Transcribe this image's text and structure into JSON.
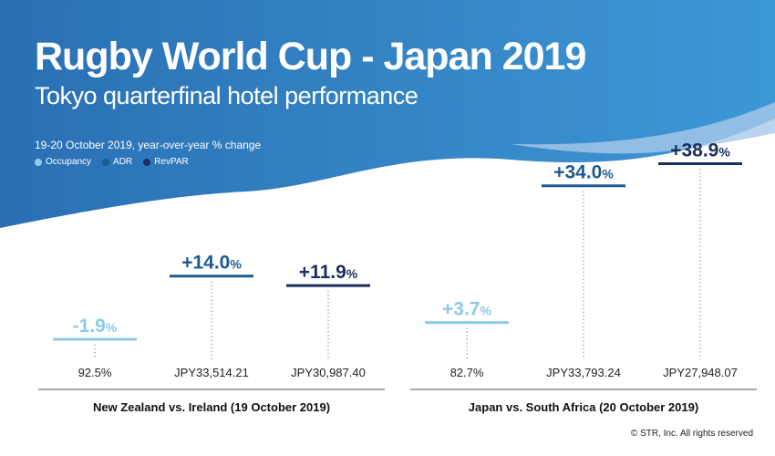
{
  "header": {
    "title": "Rugby World Cup - Japan 2019",
    "subtitle": "Tokyo quarterfinal hotel performance",
    "period": "19-20 October 2019, year-over-year % change"
  },
  "legend": [
    {
      "label": "Occupancy",
      "color": "#8ccbe8"
    },
    {
      "label": "ADR",
      "color": "#1d5a91"
    },
    {
      "label": "RevPAR",
      "color": "#1b2e5e"
    }
  ],
  "colors": {
    "background_dark": "#2a73b8",
    "background_light": "#3d95d3",
    "occupancy": "#8ccbe8",
    "adr": "#1d5a91",
    "revpar": "#1b2e5e"
  },
  "chart_data": {
    "type": "bar",
    "unit": "%",
    "series": [
      "Occupancy",
      "ADR",
      "RevPAR"
    ],
    "groups": [
      {
        "label": "New Zealand vs. Ireland (19 October 2019)",
        "items": [
          {
            "series": "Occupancy",
            "change": -1.9,
            "change_label": "-1.9",
            "value_label": "92.5%"
          },
          {
            "series": "ADR",
            "change": 14.0,
            "change_label": "+14.0",
            "value_label": "JPY33,514.21"
          },
          {
            "series": "RevPAR",
            "change": 11.9,
            "change_label": "+11.9",
            "value_label": "JPY30,987.40"
          }
        ]
      },
      {
        "label": "Japan vs. South Africa (20 October 2019)",
        "items": [
          {
            "series": "Occupancy",
            "change": 3.7,
            "change_label": "+3.7",
            "value_label": "82.7%"
          },
          {
            "series": "ADR",
            "change": 34.0,
            "change_label": "+34.0",
            "value_label": "JPY33,793.24"
          },
          {
            "series": "RevPAR",
            "change": 38.9,
            "change_label": "+38.9",
            "value_label": "JPY27,948.07"
          }
        ]
      }
    ]
  },
  "footer": "© STR, Inc. All rights reserved"
}
